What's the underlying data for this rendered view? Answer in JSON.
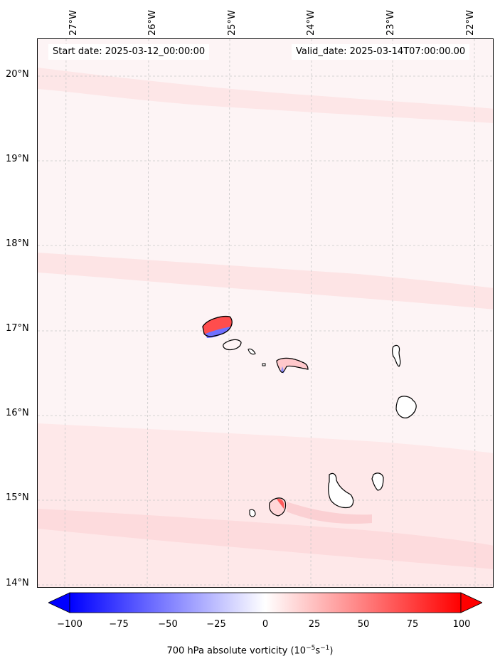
{
  "header": {
    "start_date": "Start date: 2025-03-12_00:00:00",
    "valid_date": "Valid_date: 2025-03-14T07:00:00.00"
  },
  "map": {
    "lon_labels": [
      "27°W",
      "26°W",
      "25°W",
      "24°W",
      "23°W",
      "22°W"
    ],
    "lat_labels": [
      "20°N",
      "19°N",
      "18°N",
      "17°N",
      "16°N",
      "15°N",
      "14°N"
    ],
    "field": "700 hPa absolute vorticity",
    "positive_color": "#ff0000",
    "negative_color": "#0000ff",
    "neutral_color": "#ffffff"
  },
  "colorbar": {
    "ticks": [
      "−100",
      "−75",
      "−50",
      "−25",
      "0",
      "25",
      "50",
      "75",
      "100"
    ],
    "range": [
      -100,
      100
    ],
    "label_main": "700 hPa absolute vorticity (10",
    "label_exp1": "−5",
    "label_mid": "s",
    "label_exp2": "−1",
    "label_end": ")"
  }
}
